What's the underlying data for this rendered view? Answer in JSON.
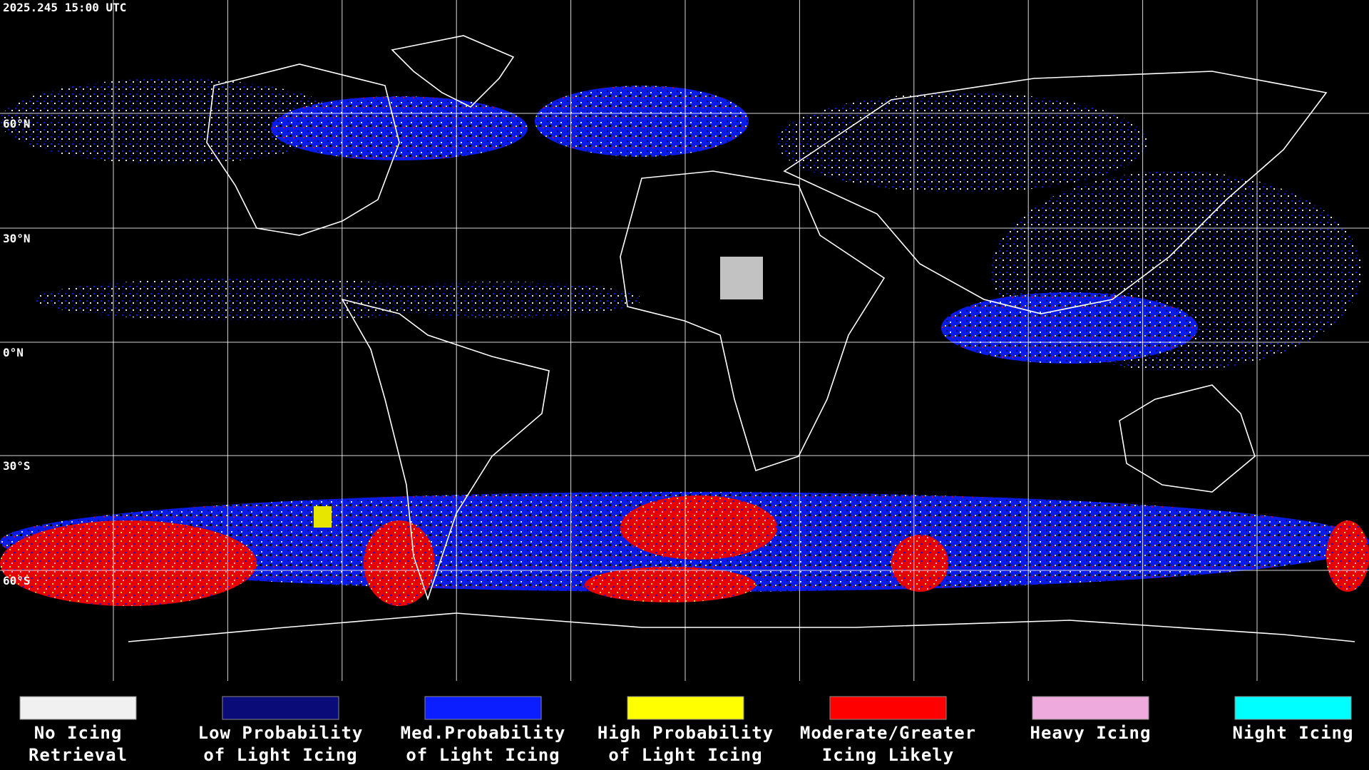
{
  "header": {
    "timestamp": "2025.245 15:00 UTC"
  },
  "map": {
    "lat_labels": [
      "60°N",
      "30°N",
      "0°N",
      "30°S",
      "60°S"
    ]
  },
  "legend": {
    "items": [
      {
        "lines": [
          "No Icing",
          "Retrieval"
        ],
        "color": "#f0f0f0"
      },
      {
        "lines": [
          "Low Probability",
          "of Light Icing"
        ],
        "color": "#0a0a78"
      },
      {
        "lines": [
          "Med.Probability",
          "of Light Icing"
        ],
        "color": "#0a1eff"
      },
      {
        "lines": [
          "High Probability",
          "of Light Icing"
        ],
        "color": "#ffff00"
      },
      {
        "lines": [
          "Moderate/Greater",
          "Icing Likely"
        ],
        "color": "#ff0000"
      },
      {
        "lines": [
          "Heavy Icing"
        ],
        "color": "#eeaadd"
      },
      {
        "lines": [
          "Night Icing"
        ],
        "color": "#00ffff"
      }
    ]
  }
}
